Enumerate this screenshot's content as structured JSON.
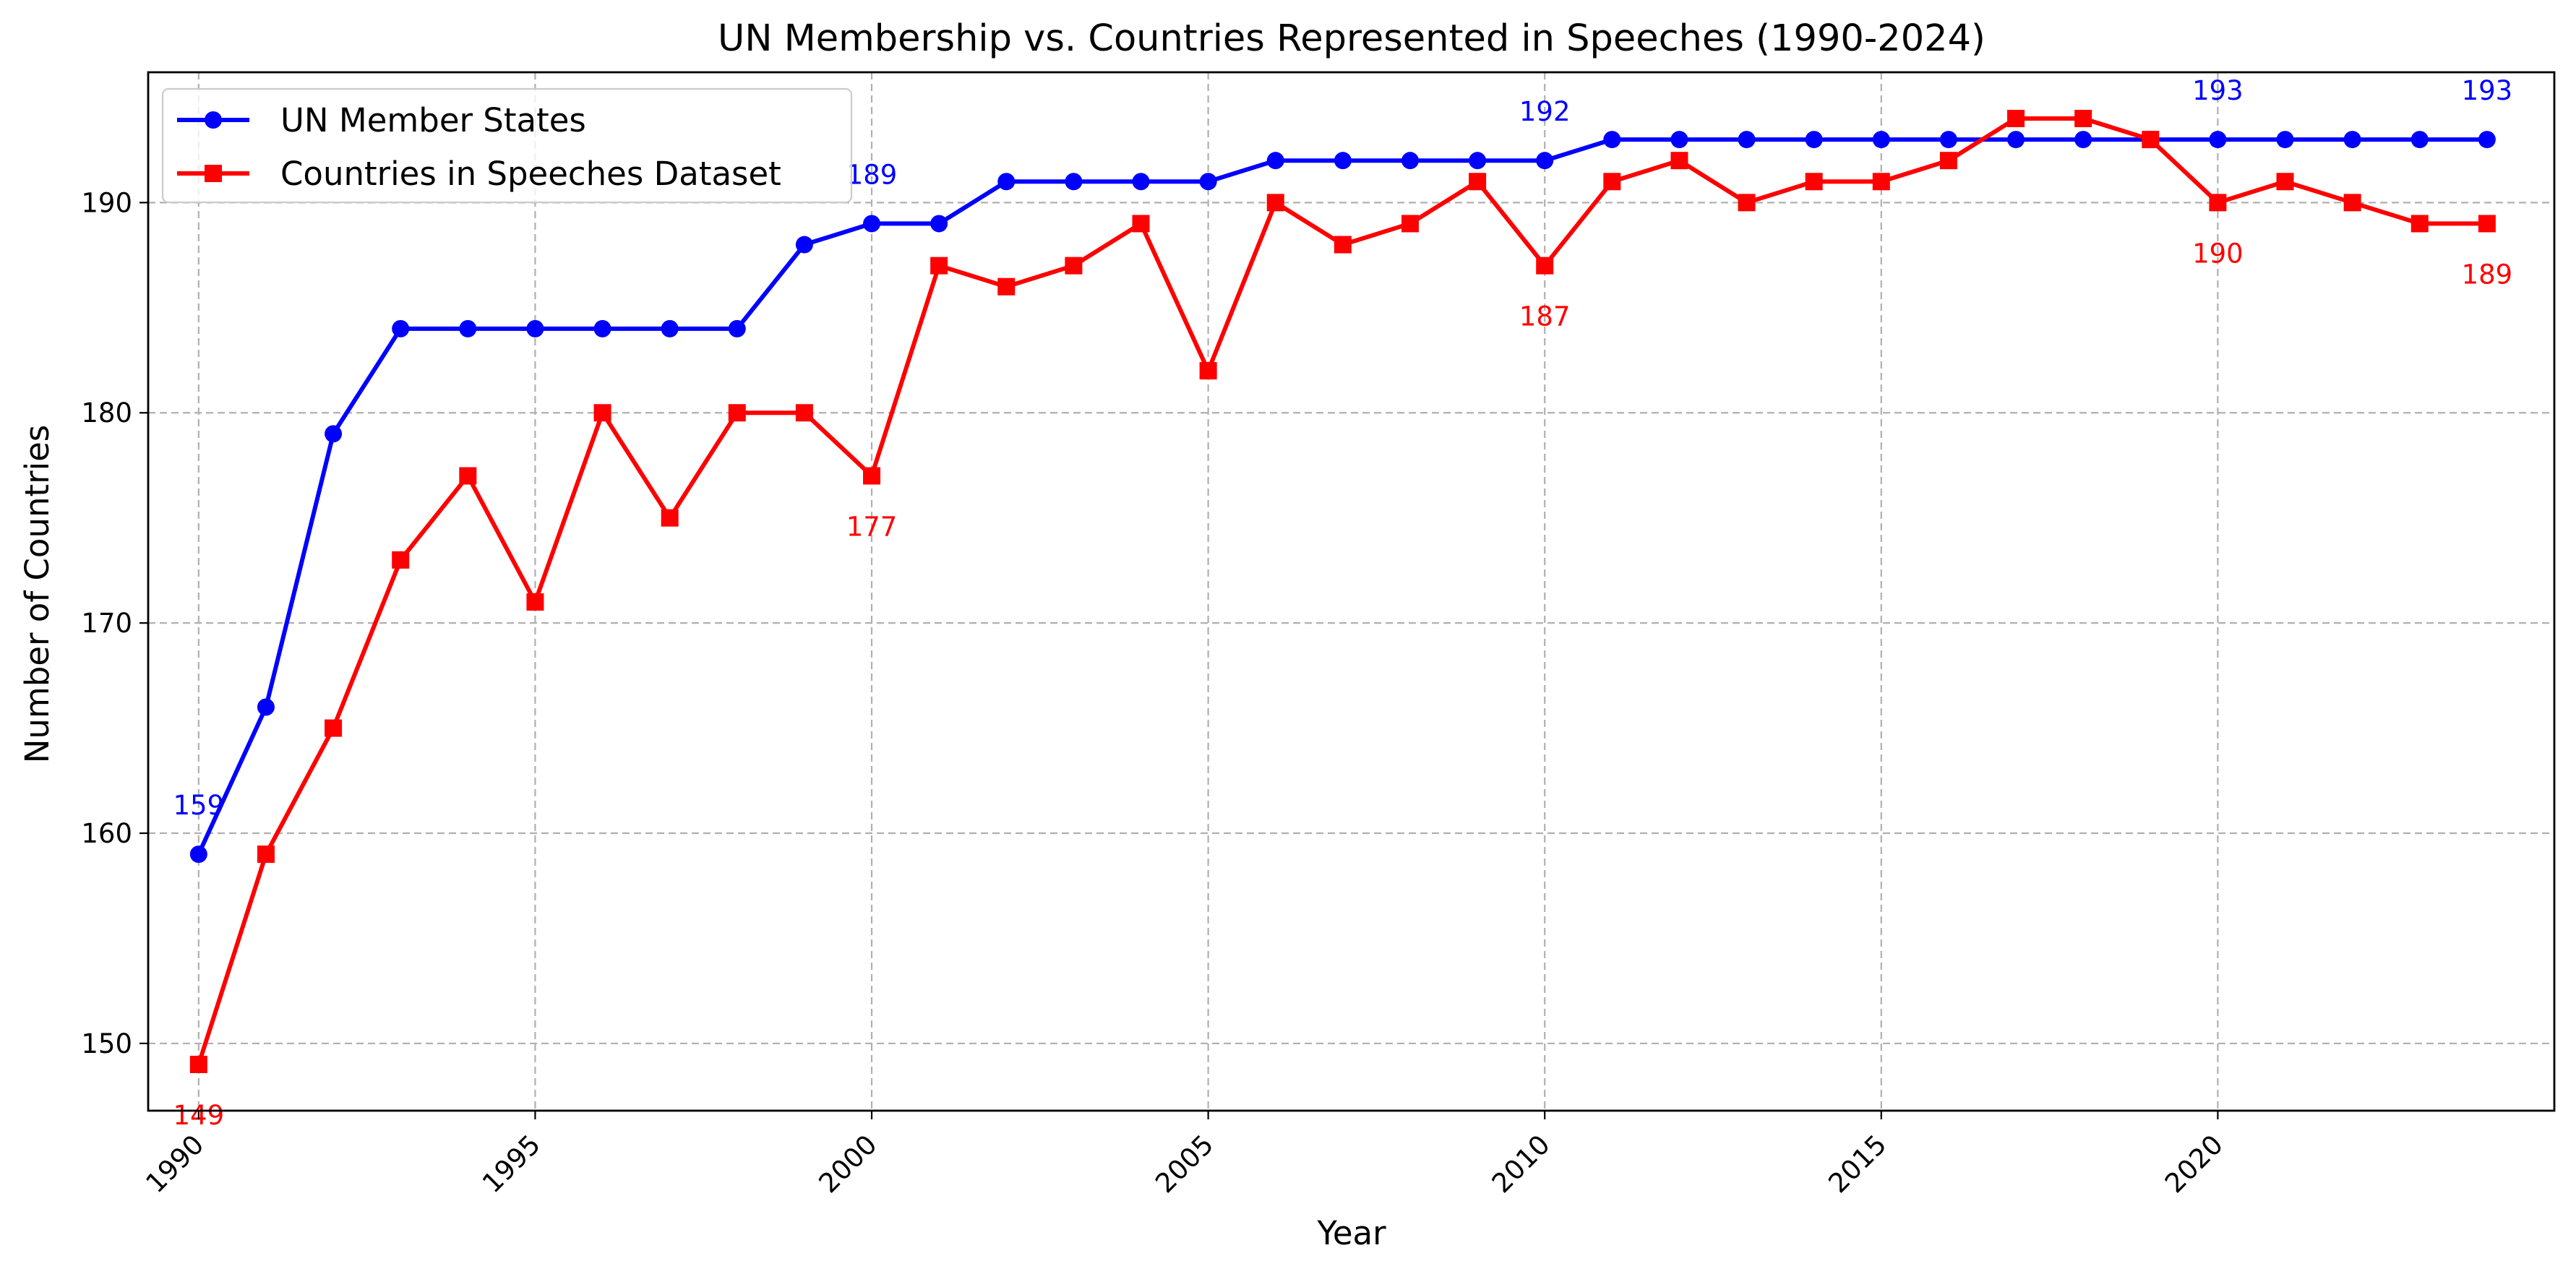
{
  "chart_data": {
    "type": "line",
    "title": "UN Membership vs. Countries Represented in Speeches (1990-2024)",
    "xlabel": "Year",
    "ylabel": "Number of Countries",
    "xlim": [
      1989.25,
      2025.0
    ],
    "ylim": [
      146.8,
      196.2
    ],
    "xticks": [
      1990,
      1995,
      2000,
      2005,
      2010,
      2015,
      2020
    ],
    "yticks": [
      150,
      160,
      170,
      180,
      190
    ],
    "grid": true,
    "legend_position": "upper left",
    "x": [
      1990,
      1991,
      1992,
      1993,
      1994,
      1995,
      1996,
      1997,
      1998,
      1999,
      2000,
      2001,
      2002,
      2003,
      2004,
      2005,
      2006,
      2007,
      2008,
      2009,
      2010,
      2011,
      2012,
      2013,
      2014,
      2015,
      2016,
      2017,
      2018,
      2019,
      2020,
      2021,
      2022,
      2023,
      2024
    ],
    "series": [
      {
        "name": "UN Member States",
        "color": "#0000ff",
        "marker": "circle",
        "values": [
          159,
          166,
          179,
          184,
          184,
          184,
          184,
          184,
          184,
          188,
          189,
          189,
          191,
          191,
          191,
          191,
          192,
          192,
          192,
          192,
          192,
          193,
          193,
          193,
          193,
          193,
          193,
          193,
          193,
          193,
          193,
          193,
          193,
          193,
          193
        ]
      },
      {
        "name": "Countries in Speeches Dataset",
        "color": "#ff0000",
        "marker": "square",
        "values": [
          149,
          159,
          165,
          173,
          177,
          171,
          180,
          175,
          180,
          180,
          177,
          187,
          186,
          187,
          189,
          182,
          190,
          188,
          189,
          191,
          187,
          191,
          192,
          190,
          191,
          191,
          192,
          194,
          194,
          193,
          190,
          191,
          190,
          189,
          189
        ]
      }
    ],
    "annotations": [
      {
        "series": 0,
        "x": 1990,
        "text": "159",
        "placement": "above"
      },
      {
        "series": 0,
        "x": 2000,
        "text": "189",
        "placement": "above"
      },
      {
        "series": 0,
        "x": 2010,
        "text": "192",
        "placement": "above"
      },
      {
        "series": 0,
        "x": 2020,
        "text": "193",
        "placement": "above"
      },
      {
        "series": 0,
        "x": 2024,
        "text": "193",
        "placement": "above"
      },
      {
        "series": 1,
        "x": 1990,
        "text": "149",
        "placement": "below"
      },
      {
        "series": 1,
        "x": 2000,
        "text": "177",
        "placement": "below"
      },
      {
        "series": 1,
        "x": 2010,
        "text": "187",
        "placement": "below"
      },
      {
        "series": 1,
        "x": 2020,
        "text": "190",
        "placement": "below"
      },
      {
        "series": 1,
        "x": 2024,
        "text": "189",
        "placement": "below"
      }
    ]
  }
}
